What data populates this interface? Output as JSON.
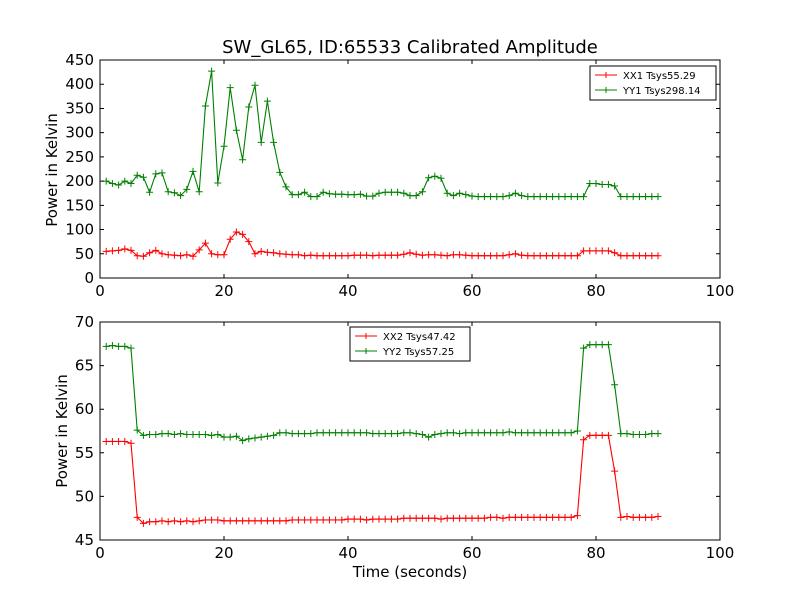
{
  "chart_data": [
    {
      "type": "line",
      "title": "SW_GL65, ID:65533 Calibrated Amplitude",
      "xlabel": "",
      "ylabel": "Power in Kelvin",
      "xlim": [
        0,
        100
      ],
      "ylim": [
        0,
        450
      ],
      "xticks": [
        0,
        20,
        40,
        60,
        80,
        100
      ],
      "yticks": [
        0,
        50,
        100,
        150,
        200,
        250,
        300,
        350,
        400,
        450
      ],
      "grid": false,
      "legend_position": "top-right",
      "marker": "+",
      "x": [
        1,
        2,
        3,
        4,
        5,
        6,
        7,
        8,
        9,
        10,
        11,
        12,
        13,
        14,
        15,
        16,
        17,
        18,
        19,
        20,
        21,
        22,
        23,
        24,
        25,
        26,
        27,
        28,
        29,
        30,
        31,
        32,
        33,
        34,
        35,
        36,
        37,
        38,
        39,
        40,
        41,
        42,
        43,
        44,
        45,
        46,
        47,
        48,
        49,
        50,
        51,
        52,
        53,
        54,
        55,
        56,
        57,
        58,
        59,
        60,
        61,
        62,
        63,
        64,
        65,
        66,
        67,
        68,
        69,
        70,
        71,
        72,
        73,
        74,
        75,
        76,
        77,
        78,
        79,
        80,
        81,
        82,
        83,
        84,
        85,
        86,
        87,
        88,
        89,
        90
      ],
      "series": [
        {
          "name": "XX1 Tsys55.29",
          "color": "#ff0000",
          "values": [
            55,
            56,
            57,
            60,
            57,
            46,
            45,
            52,
            57,
            50,
            48,
            47,
            46,
            48,
            45,
            58,
            72,
            50,
            48,
            48,
            80,
            95,
            90,
            75,
            50,
            55,
            53,
            52,
            50,
            49,
            48,
            48,
            46,
            47,
            46,
            46,
            46,
            46,
            46,
            46,
            47,
            47,
            47,
            46,
            47,
            47,
            47,
            47,
            49,
            52,
            49,
            47,
            48,
            48,
            47,
            46,
            48,
            48,
            47,
            46,
            46,
            46,
            46,
            46,
            46,
            48,
            50,
            47,
            46,
            46,
            46,
            46,
            46,
            46,
            46,
            46,
            46,
            56,
            56,
            56,
            56,
            56,
            52,
            46,
            46,
            46,
            46,
            46,
            46,
            46
          ]
        },
        {
          "name": "YY1 Tsys298.14",
          "color": "#008000",
          "values": [
            200,
            195,
            192,
            200,
            195,
            212,
            208,
            177,
            215,
            217,
            178,
            176,
            170,
            183,
            220,
            178,
            355,
            427,
            196,
            272,
            393,
            305,
            244,
            353,
            398,
            280,
            365,
            280,
            218,
            188,
            172,
            172,
            177,
            168,
            168,
            177,
            174,
            173,
            173,
            172,
            172,
            173,
            169,
            169,
            175,
            177,
            177,
            177,
            175,
            170,
            170,
            178,
            207,
            210,
            206,
            175,
            170,
            175,
            172,
            169,
            168,
            168,
            168,
            168,
            168,
            170,
            175,
            170,
            168,
            168,
            168,
            168,
            168,
            168,
            168,
            168,
            168,
            168,
            195,
            195,
            193,
            193,
            190,
            168,
            168,
            168,
            168,
            168,
            168,
            168
          ]
        }
      ]
    },
    {
      "type": "line",
      "title": "",
      "xlabel": "Time (seconds)",
      "ylabel": "Power in Kelvin",
      "xlim": [
        0,
        100
      ],
      "ylim": [
        45,
        70
      ],
      "xticks": [
        0,
        20,
        40,
        60,
        80,
        100
      ],
      "yticks": [
        45,
        50,
        55,
        60,
        65,
        70
      ],
      "grid": false,
      "legend_position": "top-center",
      "marker": "+",
      "x": [
        1,
        2,
        3,
        4,
        5,
        6,
        7,
        8,
        9,
        10,
        11,
        12,
        13,
        14,
        15,
        16,
        17,
        18,
        19,
        20,
        21,
        22,
        23,
        24,
        25,
        26,
        27,
        28,
        29,
        30,
        31,
        32,
        33,
        34,
        35,
        36,
        37,
        38,
        39,
        40,
        41,
        42,
        43,
        44,
        45,
        46,
        47,
        48,
        49,
        50,
        51,
        52,
        53,
        54,
        55,
        56,
        57,
        58,
        59,
        60,
        61,
        62,
        63,
        64,
        65,
        66,
        67,
        68,
        69,
        70,
        71,
        72,
        73,
        74,
        75,
        76,
        77,
        78,
        79,
        80,
        81,
        82,
        83,
        84,
        85,
        86,
        87,
        88,
        89,
        90
      ],
      "series": [
        {
          "name": "XX2 Tsys47.42",
          "color": "#ff0000",
          "values": [
            56.3,
            56.3,
            56.3,
            56.3,
            56.1,
            47.6,
            46.9,
            47.1,
            47.1,
            47.2,
            47.1,
            47.2,
            47.1,
            47.2,
            47.1,
            47.2,
            47.3,
            47.3,
            47.3,
            47.2,
            47.2,
            47.2,
            47.2,
            47.2,
            47.2,
            47.2,
            47.2,
            47.2,
            47.2,
            47.2,
            47.3,
            47.3,
            47.3,
            47.3,
            47.3,
            47.3,
            47.3,
            47.3,
            47.3,
            47.4,
            47.4,
            47.4,
            47.3,
            47.4,
            47.4,
            47.4,
            47.4,
            47.4,
            47.5,
            47.5,
            47.5,
            47.5,
            47.5,
            47.5,
            47.4,
            47.5,
            47.5,
            47.5,
            47.5,
            47.5,
            47.5,
            47.5,
            47.6,
            47.6,
            47.5,
            47.6,
            47.6,
            47.6,
            47.6,
            47.6,
            47.6,
            47.6,
            47.6,
            47.6,
            47.6,
            47.6,
            47.8,
            56.5,
            57.0,
            57.0,
            57.0,
            57.0,
            52.9,
            47.6,
            47.7,
            47.6,
            47.6,
            47.6,
            47.6,
            47.7
          ]
        },
        {
          "name": "YY2 Tsys57.25",
          "color": "#008000",
          "values": [
            67.2,
            67.3,
            67.2,
            67.2,
            67.0,
            57.6,
            57.0,
            57.1,
            57.1,
            57.2,
            57.2,
            57.1,
            57.2,
            57.1,
            57.1,
            57.1,
            57.1,
            57.0,
            57.1,
            56.8,
            56.8,
            56.9,
            56.4,
            56.6,
            56.7,
            56.8,
            56.9,
            57.0,
            57.3,
            57.3,
            57.2,
            57.2,
            57.2,
            57.2,
            57.3,
            57.3,
            57.3,
            57.3,
            57.3,
            57.3,
            57.3,
            57.3,
            57.3,
            57.2,
            57.2,
            57.2,
            57.2,
            57.2,
            57.3,
            57.3,
            57.2,
            57.1,
            56.8,
            57.1,
            57.2,
            57.3,
            57.3,
            57.2,
            57.3,
            57.3,
            57.3,
            57.3,
            57.3,
            57.3,
            57.3,
            57.4,
            57.3,
            57.3,
            57.3,
            57.3,
            57.3,
            57.3,
            57.3,
            57.3,
            57.3,
            57.3,
            57.5,
            67.0,
            67.4,
            67.4,
            67.4,
            67.4,
            62.8,
            57.2,
            57.2,
            57.1,
            57.1,
            57.1,
            57.2,
            57.2
          ]
        }
      ]
    }
  ]
}
